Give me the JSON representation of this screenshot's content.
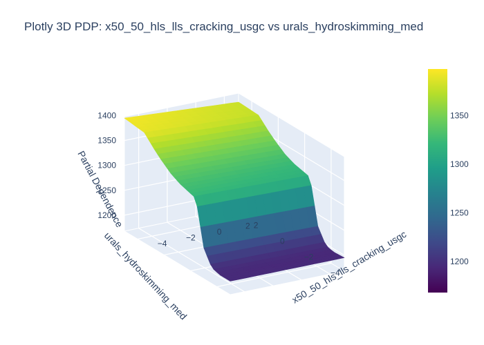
{
  "chart_data": {
    "type": "surface",
    "title": "Plotly 3D PDP: x50_50_hls_lls_cracking_usgc vs urals_hydroskimming_med",
    "xlabel": "x50_50_hls_lls_cracking_usgc",
    "ylabel": "urals_hydroskimming_med",
    "zlabel": "Partial Dependence",
    "x_ticks": [
      -4,
      -2,
      0,
      2
    ],
    "x_tick_labels": [
      "−4",
      "−2",
      "0",
      "2"
    ],
    "y_ticks": [
      -4,
      -2,
      0,
      2
    ],
    "y_tick_labels": [
      "−4",
      "−2",
      "0",
      "2"
    ],
    "z_ticks": [
      1200,
      1250,
      1300,
      1350,
      1400
    ],
    "z_range": [
      1168,
      1398
    ],
    "x_range": [
      -5,
      3
    ],
    "y_range": [
      -5,
      3
    ],
    "surface_profile_x": [
      -5,
      -3.5,
      -2.8,
      -2.2,
      -1.5,
      -0.8,
      -0.2,
      0.4,
      1.0,
      1.6,
      2.2,
      3.0
    ],
    "surface_profile_z": [
      1395,
      1390,
      1370,
      1355,
      1340,
      1330,
      1325,
      1320,
      1230,
      1200,
      1195,
      1195
    ],
    "y_profile_x": [
      -5,
      3
    ],
    "y_profile_delta": [
      0,
      -25
    ],
    "colorscale": "Viridis",
    "colorbar": {
      "ticks": [
        1200,
        1250,
        1300,
        1350
      ],
      "tick_labels": [
        "1200",
        "1250",
        "1300",
        "1350"
      ],
      "range": [
        1168,
        1398
      ]
    },
    "colors": [
      "#440154",
      "#482878",
      "#3e4989",
      "#31688e",
      "#26828e",
      "#1f9e89",
      "#35b779",
      "#6ece58",
      "#b5de2b",
      "#fde725"
    ]
  }
}
